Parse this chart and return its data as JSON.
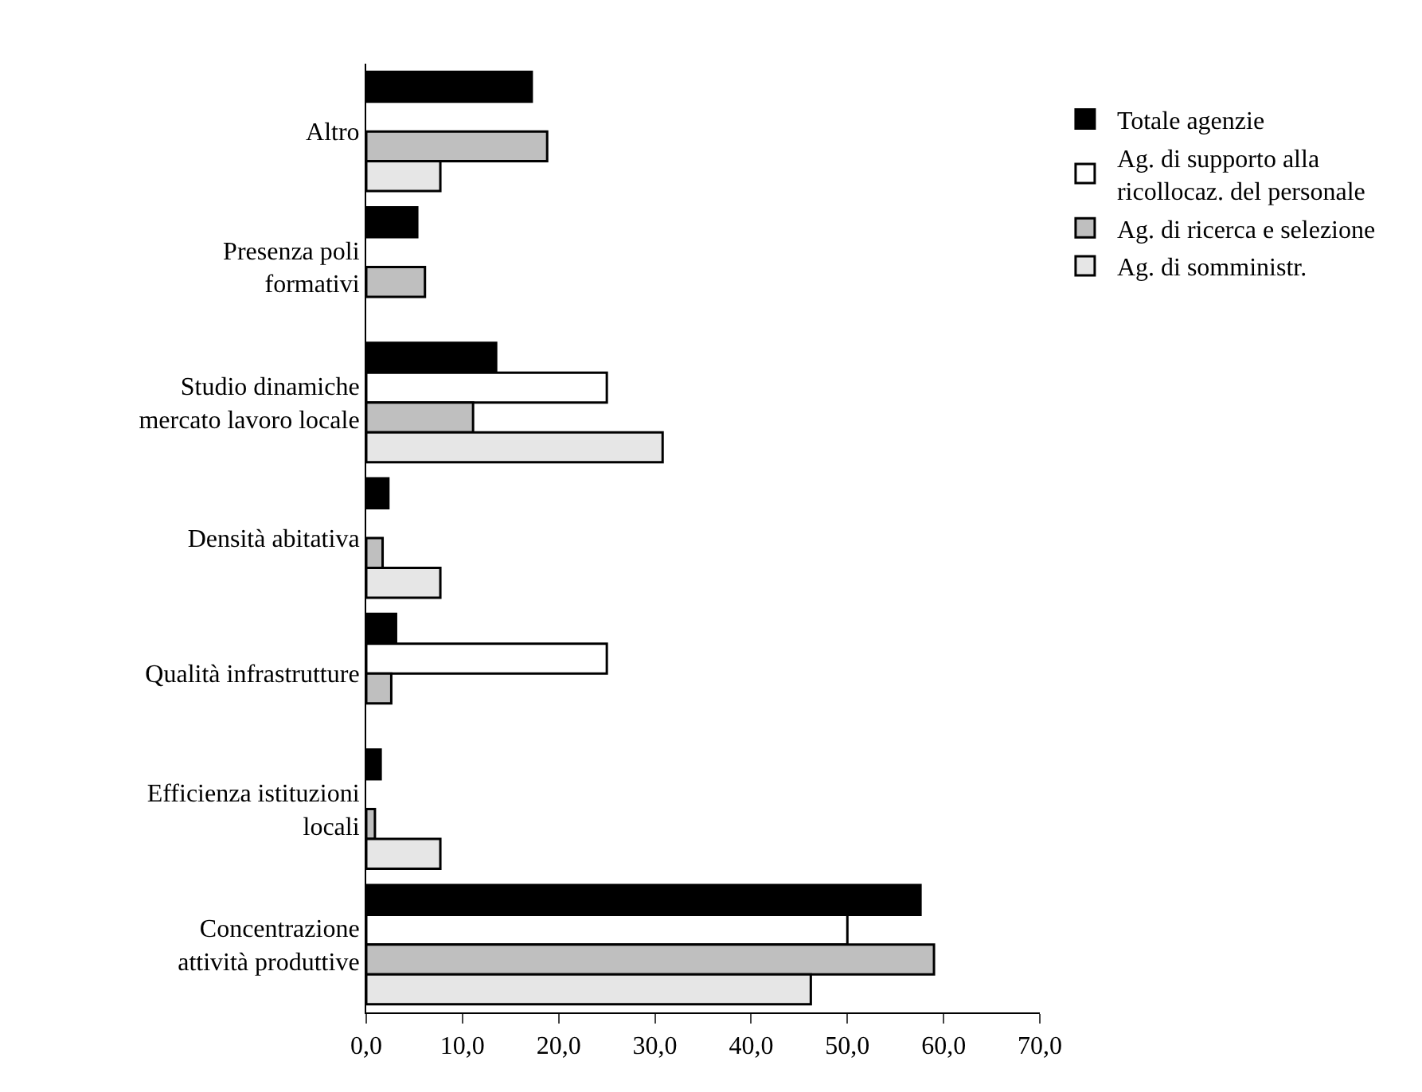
{
  "chart_data": {
    "type": "bar",
    "orientation": "horizontal",
    "categories": [
      "Altro",
      "Presenza poli\nformativi",
      "Studio dinamiche\nmercato lavoro locale",
      "Densità abitativa",
      "Qualità infrastrutture",
      "Efficienza istituzioni\nlocali",
      "Concentrazione\nattività produttive"
    ],
    "series": [
      {
        "name": "Totale agenzie",
        "color": "#000000",
        "values": [
          17.2,
          5.3,
          13.5,
          2.3,
          3.1,
          1.5,
          57.6
        ]
      },
      {
        "name": "Ag. di supporto alla\nricollocaz. del personale",
        "color": "#ffffff",
        "values": [
          null,
          null,
          25.0,
          null,
          25.0,
          null,
          50.0
        ]
      },
      {
        "name": "Ag. di ricerca e selezione",
        "color": "#bfbfbf",
        "values": [
          18.8,
          6.1,
          11.1,
          1.7,
          2.6,
          0.9,
          59.0
        ]
      },
      {
        "name": "Ag. di somministr.",
        "color": "#e6e6e6",
        "values": [
          7.7,
          null,
          30.8,
          7.7,
          null,
          7.7,
          46.2
        ]
      }
    ],
    "xlim": [
      0,
      70
    ],
    "xticks": [
      {
        "value": 0,
        "label": "0,0"
      },
      {
        "value": 10,
        "label": "10,0"
      },
      {
        "value": 20,
        "label": "20,0"
      },
      {
        "value": 30,
        "label": "30,0"
      },
      {
        "value": 40,
        "label": "40,0"
      },
      {
        "value": 50,
        "label": "50,0"
      },
      {
        "value": 60,
        "label": "60,0"
      },
      {
        "value": 70,
        "label": "70,0"
      }
    ],
    "legend": "right"
  }
}
